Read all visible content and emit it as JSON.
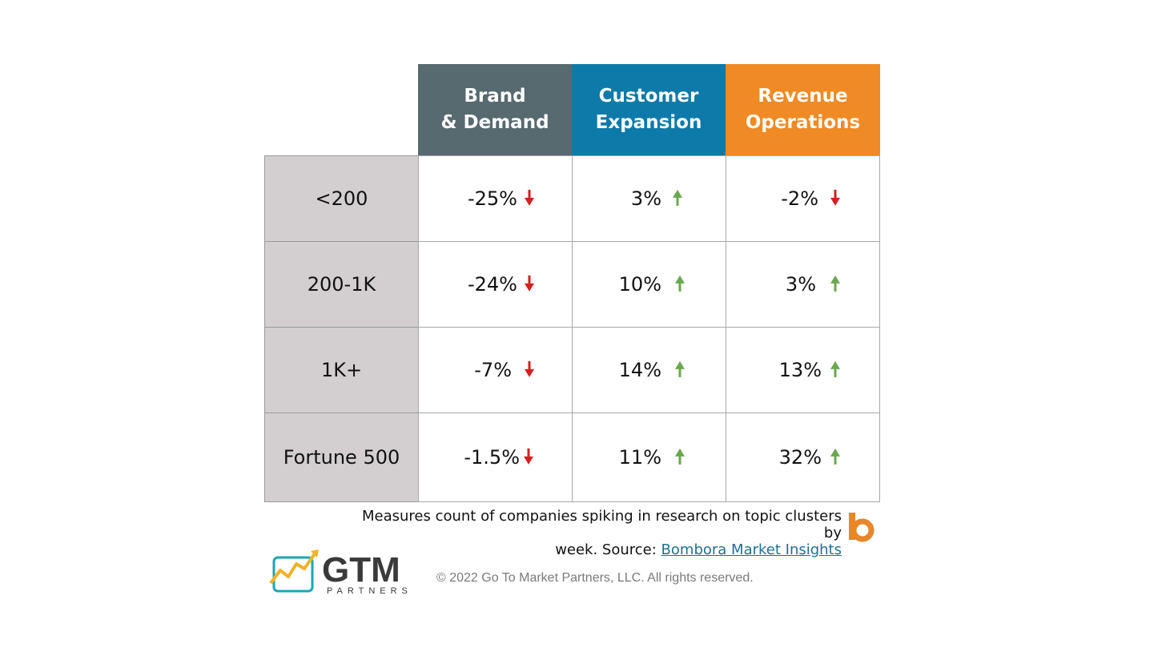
{
  "colors": {
    "brand_demand": "#566a70",
    "customer_expansion": "#0e7aa9",
    "revenue_operations": "#f08a24",
    "row_label_bg": "#d3cfd0",
    "down": "#d32020",
    "up": "#6aa84f"
  },
  "table": {
    "columns": [
      {
        "label": "Brand\n& Demand"
      },
      {
        "label": "Customer\nExpansion"
      },
      {
        "label": "Revenue\nOperations"
      }
    ],
    "rows": [
      {
        "label": "<200",
        "cells": [
          {
            "value": "-25%",
            "trend": "down"
          },
          {
            "value": "3%",
            "trend": "up"
          },
          {
            "value": "-2%",
            "trend": "down"
          }
        ]
      },
      {
        "label": "200-1K",
        "cells": [
          {
            "value": "-24%",
            "trend": "down"
          },
          {
            "value": "10%",
            "trend": "up"
          },
          {
            "value": "3%",
            "trend": "up"
          }
        ]
      },
      {
        "label": "1K+",
        "cells": [
          {
            "value": "-7%",
            "trend": "down"
          },
          {
            "value": "14%",
            "trend": "up"
          },
          {
            "value": "13%",
            "trend": "up"
          }
        ]
      },
      {
        "label": "Fortune 500",
        "cells": [
          {
            "value": "-1.5%",
            "trend": "down"
          },
          {
            "value": "11%",
            "trend": "up"
          },
          {
            "value": "32%",
            "trend": "up"
          }
        ]
      }
    ]
  },
  "caption": {
    "text_line1": "Measures count of companies spiking in research on topic clusters by",
    "text_line2_prefix": "week. Source: ",
    "link_text": "Bombora Market Insights"
  },
  "footer": {
    "logo_name": "GTM",
    "logo_sub": "PARTNERS",
    "copyright": "© 2022 Go To Market Partners, LLC. All rights reserved.",
    "brand_icon": "b"
  }
}
